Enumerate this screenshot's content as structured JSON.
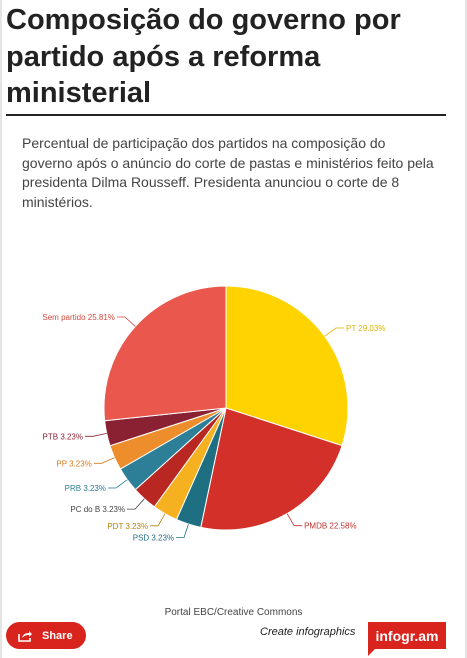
{
  "header": {
    "title": "Composição do governo por partido após a reforma ministerial",
    "subtitle": "Percentual de participação dos partidos na composição do governo após o anúncio do corte de pastas e ministérios feito pela presidenta Dilma Rousseff. Presidenta anunciou o corte de 8 ministérios."
  },
  "chart_data": {
    "type": "pie",
    "title": "",
    "slices": [
      {
        "label": "PT",
        "value": 29.03,
        "display": "PT 29.03%",
        "color": "#ffd300",
        "label_color": "#e0b400"
      },
      {
        "label": "PMDB",
        "value": 22.58,
        "display": "PMDB 22.58%",
        "color": "#d3302a",
        "label_color": "#c0302a"
      },
      {
        "label": "PSD",
        "value": 3.23,
        "display": "PSD 3.23%",
        "color": "#1f6f82",
        "label_color": "#1f6f82"
      },
      {
        "label": "PDT",
        "value": 3.23,
        "display": "PDT 3.23%",
        "color": "#f5b11f",
        "label_color": "#b58410"
      },
      {
        "label": "PC do B",
        "value": 3.23,
        "display": "PC do B 3.23%",
        "color": "#b92723",
        "label_color": "#444444"
      },
      {
        "label": "PRB",
        "value": 3.23,
        "display": "PRB 3.23%",
        "color": "#2d7f97",
        "label_color": "#2d7f97"
      },
      {
        "label": "PP",
        "value": 3.23,
        "display": "PP 3.23%",
        "color": "#ee8d2c",
        "label_color": "#d87a1c"
      },
      {
        "label": "PTB",
        "value": 3.23,
        "display": "PTB 3.23%",
        "color": "#8a2132",
        "label_color": "#8a2132"
      },
      {
        "label": "Sem partido",
        "value": 25.81,
        "display": "Sem partido 25.81%",
        "color": "#e9574d",
        "label_color": "#d54a40"
      }
    ]
  },
  "footer": {
    "source": "Portal EBC/Creative Commons",
    "share_label": "Share",
    "create_label": "Create infographics",
    "brand": "infogr.am"
  }
}
